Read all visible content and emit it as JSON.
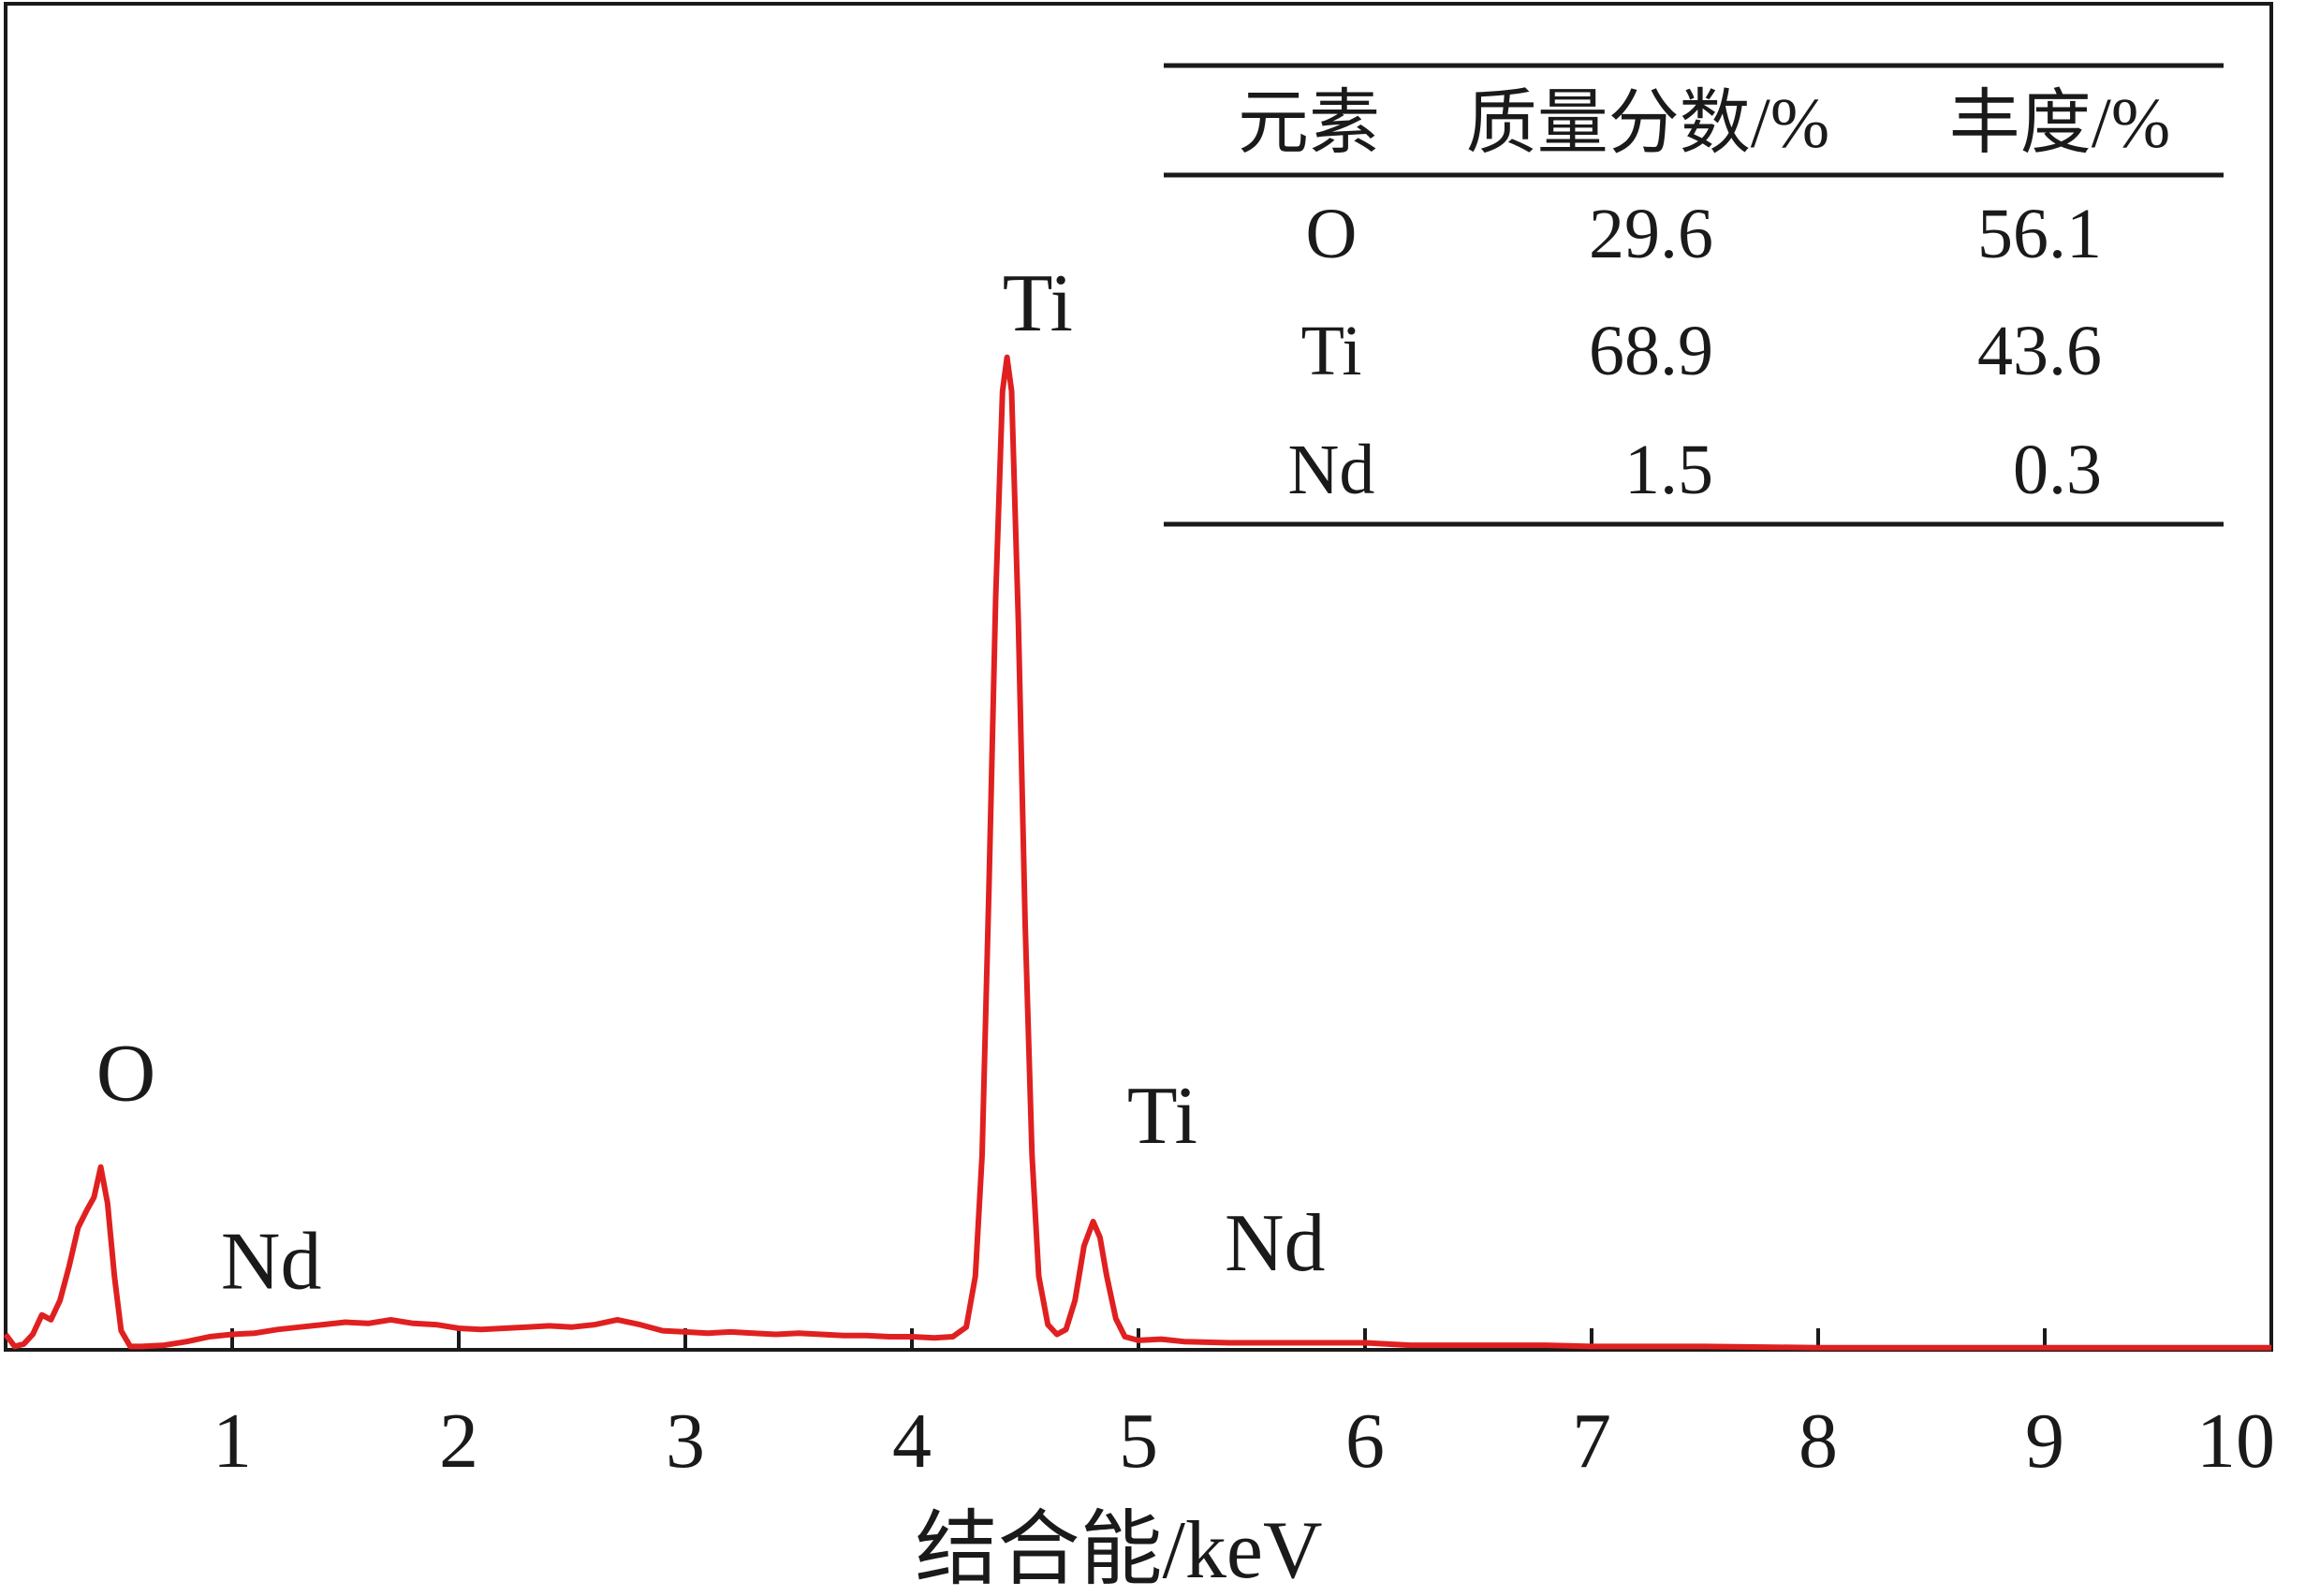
{
  "chart_data": {
    "type": "line",
    "xlabel": "结合能/keV",
    "ylabel": "",
    "xlim": [
      0,
      10
    ],
    "ylim": [
      0,
      1
    ],
    "x_ticks": [
      "1",
      "2",
      "3",
      "4",
      "5",
      "6",
      "7",
      "8",
      "9",
      "10"
    ],
    "grid": false,
    "line_color": "#e02020",
    "series": [
      {
        "points": [
          [
            0.0,
            0.012
          ],
          [
            0.04,
            0.002
          ],
          [
            0.08,
            0.004
          ],
          [
            0.12,
            0.012
          ],
          [
            0.16,
            0.028
          ],
          [
            0.2,
            0.024
          ],
          [
            0.24,
            0.04
          ],
          [
            0.28,
            0.068
          ],
          [
            0.32,
            0.1
          ],
          [
            0.36,
            0.115
          ],
          [
            0.39,
            0.125
          ],
          [
            0.42,
            0.15
          ],
          [
            0.45,
            0.12
          ],
          [
            0.48,
            0.06
          ],
          [
            0.51,
            0.015
          ],
          [
            0.55,
            0.002
          ],
          [
            0.6,
            0.002
          ],
          [
            0.7,
            0.003
          ],
          [
            0.8,
            0.006
          ],
          [
            0.9,
            0.01
          ],
          [
            1.0,
            0.012
          ],
          [
            1.1,
            0.013
          ],
          [
            1.2,
            0.016
          ],
          [
            1.3,
            0.018
          ],
          [
            1.4,
            0.02
          ],
          [
            1.5,
            0.022
          ],
          [
            1.6,
            0.021
          ],
          [
            1.7,
            0.024
          ],
          [
            1.8,
            0.021
          ],
          [
            1.9,
            0.02
          ],
          [
            2.0,
            0.017
          ],
          [
            2.1,
            0.016
          ],
          [
            2.2,
            0.017
          ],
          [
            2.3,
            0.018
          ],
          [
            2.4,
            0.019
          ],
          [
            2.5,
            0.018
          ],
          [
            2.6,
            0.02
          ],
          [
            2.7,
            0.024
          ],
          [
            2.8,
            0.02
          ],
          [
            2.9,
            0.015
          ],
          [
            3.0,
            0.014
          ],
          [
            3.1,
            0.013
          ],
          [
            3.2,
            0.014
          ],
          [
            3.3,
            0.013
          ],
          [
            3.4,
            0.012
          ],
          [
            3.5,
            0.013
          ],
          [
            3.6,
            0.012
          ],
          [
            3.7,
            0.011
          ],
          [
            3.8,
            0.011
          ],
          [
            3.9,
            0.01
          ],
          [
            4.0,
            0.01
          ],
          [
            4.1,
            0.009
          ],
          [
            4.18,
            0.01
          ],
          [
            4.24,
            0.018
          ],
          [
            4.28,
            0.06
          ],
          [
            4.31,
            0.16
          ],
          [
            4.34,
            0.38
          ],
          [
            4.37,
            0.62
          ],
          [
            4.4,
            0.79
          ],
          [
            4.42,
            0.818
          ],
          [
            4.44,
            0.79
          ],
          [
            4.47,
            0.6
          ],
          [
            4.5,
            0.35
          ],
          [
            4.53,
            0.16
          ],
          [
            4.56,
            0.06
          ],
          [
            4.6,
            0.02
          ],
          [
            4.64,
            0.012
          ],
          [
            4.68,
            0.016
          ],
          [
            4.72,
            0.04
          ],
          [
            4.76,
            0.085
          ],
          [
            4.8,
            0.105
          ],
          [
            4.83,
            0.092
          ],
          [
            4.86,
            0.06
          ],
          [
            4.9,
            0.025
          ],
          [
            4.94,
            0.01
          ],
          [
            5.0,
            0.007
          ],
          [
            5.1,
            0.008
          ],
          [
            5.2,
            0.006
          ],
          [
            5.4,
            0.005
          ],
          [
            5.6,
            0.005
          ],
          [
            5.8,
            0.005
          ],
          [
            6.0,
            0.005
          ],
          [
            6.2,
            0.003
          ],
          [
            6.5,
            0.003
          ],
          [
            6.8,
            0.003
          ],
          [
            7.0,
            0.002
          ],
          [
            7.5,
            0.002
          ],
          [
            8.0,
            0.001
          ],
          [
            8.5,
            0.001
          ],
          [
            9.0,
            0.001
          ],
          [
            9.5,
            0.001
          ],
          [
            10.0,
            0.001
          ]
        ]
      }
    ],
    "peak_labels": [
      {
        "text": "O",
        "x": 0.4,
        "y": 0.205
      },
      {
        "text": "Nd",
        "x": 0.95,
        "y": 0.05
      },
      {
        "text": "Ti",
        "x": 4.4,
        "y": 0.84
      },
      {
        "text": "Ti",
        "x": 4.95,
        "y": 0.17
      },
      {
        "text": "Nd",
        "x": 5.38,
        "y": 0.065
      }
    ],
    "table": {
      "headers": [
        "元素",
        "质量分数/%",
        "丰度/%"
      ],
      "rows": [
        [
          "O",
          "29.6",
          "56.1"
        ],
        [
          "Ti",
          "68.9",
          "43.6"
        ],
        [
          "Nd",
          "1.5",
          "0.3"
        ]
      ]
    }
  }
}
